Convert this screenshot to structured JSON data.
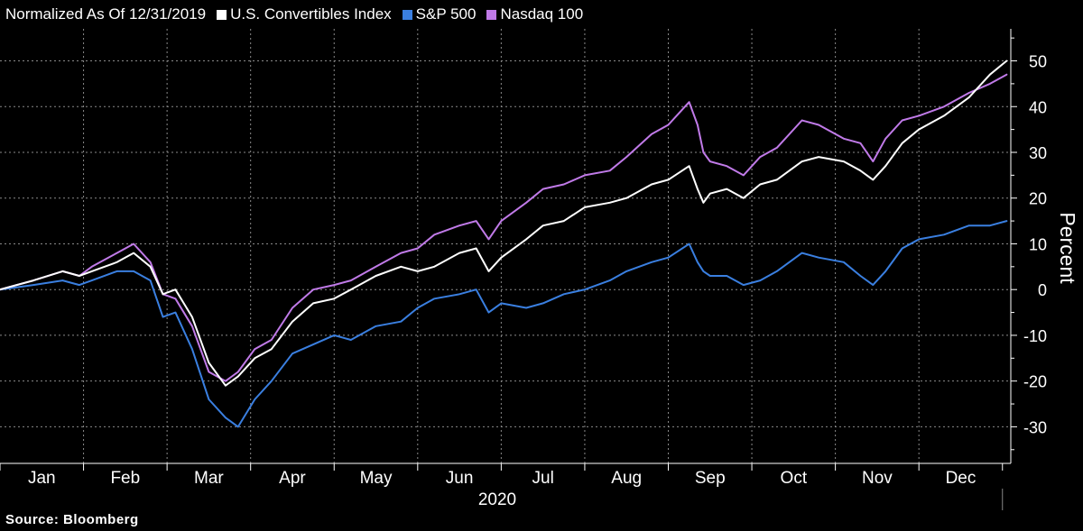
{
  "legend": {
    "prefix": "Normalized As Of 12/31/2019",
    "items": [
      {
        "label": "U.S. Convertibles Index",
        "color": "#ffffff"
      },
      {
        "label": "S&P 500",
        "color": "#3a7fe0"
      },
      {
        "label": "Nasdaq 100",
        "color": "#c07ae8"
      }
    ]
  },
  "source": "Source: Bloomberg",
  "chart_data": {
    "type": "line",
    "title": "",
    "xlabel": "2020",
    "ylabel": "Percent",
    "ylim": [
      -38,
      57
    ],
    "xlim": [
      0,
      12.1
    ],
    "yticks": [
      -30,
      -20,
      -10,
      0,
      10,
      20,
      30,
      40,
      50
    ],
    "months": [
      "Jan",
      "Feb",
      "Mar",
      "Apr",
      "May",
      "Jun",
      "Jul",
      "Aug",
      "Sep",
      "Oct",
      "Nov",
      "Dec"
    ],
    "grid": true,
    "legend_position": "top-left",
    "series": [
      {
        "name": "U.S. Convertibles Index",
        "color": "#ffffff",
        "points": [
          [
            0,
            0
          ],
          [
            0.4,
            2
          ],
          [
            0.75,
            4
          ],
          [
            0.95,
            3
          ],
          [
            1.1,
            4
          ],
          [
            1.4,
            6
          ],
          [
            1.6,
            8
          ],
          [
            1.8,
            5
          ],
          [
            1.95,
            -1
          ],
          [
            2.1,
            0
          ],
          [
            2.3,
            -6
          ],
          [
            2.5,
            -16
          ],
          [
            2.7,
            -21
          ],
          [
            2.85,
            -19
          ],
          [
            3.05,
            -15
          ],
          [
            3.25,
            -13
          ],
          [
            3.5,
            -7
          ],
          [
            3.75,
            -3
          ],
          [
            4.0,
            -2
          ],
          [
            4.2,
            0
          ],
          [
            4.5,
            3
          ],
          [
            4.8,
            5
          ],
          [
            5.0,
            4
          ],
          [
            5.2,
            5
          ],
          [
            5.5,
            8
          ],
          [
            5.7,
            9
          ],
          [
            5.85,
            4
          ],
          [
            6.0,
            7
          ],
          [
            6.3,
            11
          ],
          [
            6.5,
            14
          ],
          [
            6.75,
            15
          ],
          [
            7.0,
            18
          ],
          [
            7.3,
            19
          ],
          [
            7.5,
            20
          ],
          [
            7.8,
            23
          ],
          [
            8.0,
            24
          ],
          [
            8.25,
            27
          ],
          [
            8.35,
            22
          ],
          [
            8.42,
            19
          ],
          [
            8.5,
            21
          ],
          [
            8.7,
            22
          ],
          [
            8.9,
            20
          ],
          [
            9.1,
            23
          ],
          [
            9.3,
            24
          ],
          [
            9.6,
            28
          ],
          [
            9.8,
            29
          ],
          [
            10.1,
            28
          ],
          [
            10.3,
            26
          ],
          [
            10.45,
            24
          ],
          [
            10.6,
            27
          ],
          [
            10.8,
            32
          ],
          [
            11.0,
            35
          ],
          [
            11.3,
            38
          ],
          [
            11.6,
            42
          ],
          [
            11.85,
            47
          ],
          [
            12.05,
            50
          ]
        ]
      },
      {
        "name": "S&P 500",
        "color": "#3a7fe0",
        "points": [
          [
            0,
            0
          ],
          [
            0.4,
            1
          ],
          [
            0.75,
            2
          ],
          [
            0.95,
            1
          ],
          [
            1.1,
            2
          ],
          [
            1.4,
            4
          ],
          [
            1.6,
            4
          ],
          [
            1.8,
            2
          ],
          [
            1.95,
            -6
          ],
          [
            2.1,
            -5
          ],
          [
            2.3,
            -13
          ],
          [
            2.5,
            -24
          ],
          [
            2.7,
            -28
          ],
          [
            2.85,
            -30
          ],
          [
            3.05,
            -24
          ],
          [
            3.25,
            -20
          ],
          [
            3.5,
            -14
          ],
          [
            3.75,
            -12
          ],
          [
            4.0,
            -10
          ],
          [
            4.2,
            -11
          ],
          [
            4.5,
            -8
          ],
          [
            4.8,
            -7
          ],
          [
            5.0,
            -4
          ],
          [
            5.2,
            -2
          ],
          [
            5.5,
            -1
          ],
          [
            5.7,
            0
          ],
          [
            5.85,
            -5
          ],
          [
            6.0,
            -3
          ],
          [
            6.3,
            -4
          ],
          [
            6.5,
            -3
          ],
          [
            6.75,
            -1
          ],
          [
            7.0,
            0
          ],
          [
            7.3,
            2
          ],
          [
            7.5,
            4
          ],
          [
            7.8,
            6
          ],
          [
            8.0,
            7
          ],
          [
            8.25,
            10
          ],
          [
            8.35,
            6
          ],
          [
            8.42,
            4
          ],
          [
            8.5,
            3
          ],
          [
            8.7,
            3
          ],
          [
            8.9,
            1
          ],
          [
            9.1,
            2
          ],
          [
            9.3,
            4
          ],
          [
            9.6,
            8
          ],
          [
            9.8,
            7
          ],
          [
            10.1,
            6
          ],
          [
            10.3,
            3
          ],
          [
            10.45,
            1
          ],
          [
            10.6,
            4
          ],
          [
            10.8,
            9
          ],
          [
            11.0,
            11
          ],
          [
            11.3,
            12
          ],
          [
            11.6,
            14
          ],
          [
            11.85,
            14
          ],
          [
            12.05,
            15
          ]
        ]
      },
      {
        "name": "Nasdaq 100",
        "color": "#c07ae8",
        "points": [
          [
            0,
            0
          ],
          [
            0.4,
            2
          ],
          [
            0.75,
            4
          ],
          [
            0.95,
            3
          ],
          [
            1.1,
            5
          ],
          [
            1.4,
            8
          ],
          [
            1.6,
            10
          ],
          [
            1.8,
            6
          ],
          [
            1.95,
            -1
          ],
          [
            2.1,
            -2
          ],
          [
            2.3,
            -8
          ],
          [
            2.5,
            -18
          ],
          [
            2.7,
            -20
          ],
          [
            2.85,
            -18
          ],
          [
            3.05,
            -13
          ],
          [
            3.25,
            -11
          ],
          [
            3.5,
            -4
          ],
          [
            3.75,
            0
          ],
          [
            4.0,
            1
          ],
          [
            4.2,
            2
          ],
          [
            4.5,
            5
          ],
          [
            4.8,
            8
          ],
          [
            5.0,
            9
          ],
          [
            5.2,
            12
          ],
          [
            5.5,
            14
          ],
          [
            5.7,
            15
          ],
          [
            5.85,
            11
          ],
          [
            6.0,
            15
          ],
          [
            6.3,
            19
          ],
          [
            6.5,
            22
          ],
          [
            6.75,
            23
          ],
          [
            7.0,
            25
          ],
          [
            7.3,
            26
          ],
          [
            7.5,
            29
          ],
          [
            7.8,
            34
          ],
          [
            8.0,
            36
          ],
          [
            8.25,
            41
          ],
          [
            8.35,
            36
          ],
          [
            8.42,
            30
          ],
          [
            8.5,
            28
          ],
          [
            8.7,
            27
          ],
          [
            8.9,
            25
          ],
          [
            9.1,
            29
          ],
          [
            9.3,
            31
          ],
          [
            9.6,
            37
          ],
          [
            9.8,
            36
          ],
          [
            10.1,
            33
          ],
          [
            10.3,
            32
          ],
          [
            10.45,
            28
          ],
          [
            10.6,
            33
          ],
          [
            10.8,
            37
          ],
          [
            11.0,
            38
          ],
          [
            11.3,
            40
          ],
          [
            11.6,
            43
          ],
          [
            11.85,
            45
          ],
          [
            12.05,
            47
          ]
        ]
      }
    ]
  }
}
